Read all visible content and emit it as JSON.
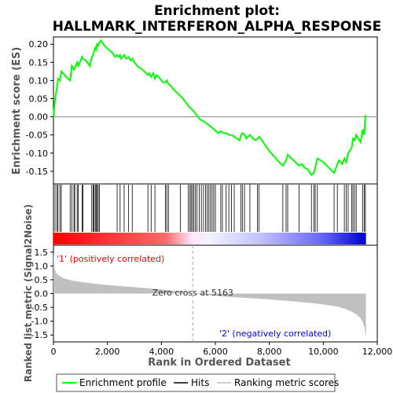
{
  "chart_data": {
    "type": "line",
    "title": "Enrichment plot:\nHALLMARK_INTERFERON_ALPHA_RESPONSE",
    "top_panel": {
      "ylabel": "Enrichment score (ES)",
      "ylim": [
        -0.185,
        0.22
      ],
      "yticks": [
        0.2,
        0.15,
        0.1,
        0.05,
        0.0,
        -0.05,
        -0.1,
        -0.15
      ],
      "ytick_labels": [
        "0.20",
        "0.15",
        "0.10",
        "0.05",
        "0.00",
        "-0.05",
        "-0.10",
        "-0.15"
      ],
      "zero_line": 0.0,
      "series": [
        {
          "name": "Enrichment profile",
          "color": "#00ff00",
          "x": [
            0,
            60,
            130,
            170,
            240,
            290,
            420,
            460,
            620,
            680,
            760,
            790,
            880,
            920,
            1060,
            1090,
            1200,
            1350,
            1420,
            1470,
            1500,
            1550,
            1580,
            1620,
            1660,
            1700,
            1760,
            1900,
            2050,
            2200,
            2290,
            2360,
            2420,
            2470,
            2500,
            2560,
            2620,
            2700,
            2780,
            2860,
            2920,
            3000,
            3100,
            3300,
            3500,
            3550,
            3620,
            3700,
            3760,
            3820,
            3900,
            4050,
            4150,
            4200,
            4260,
            4350,
            4450,
            4600,
            4800,
            5000,
            5200,
            5400,
            5600,
            5800,
            5950,
            6100,
            6200,
            6300,
            6400,
            6500,
            6600,
            6700,
            6800,
            6900,
            6950,
            7000,
            7080,
            7150,
            7200,
            7280,
            7330,
            7400,
            7500,
            7560,
            7620,
            7680,
            8000,
            8300,
            8500,
            8620,
            8680,
            8750,
            8900,
            9100,
            9200,
            9300,
            9420,
            9560,
            9650,
            9700,
            9780,
            10000,
            10400,
            10520,
            10580,
            10700,
            10780,
            10850,
            10920,
            11050,
            11100,
            11160,
            11220,
            11380,
            11460,
            11520,
            11560
          ],
          "values": [
            0.0,
            0.05,
            0.08,
            0.105,
            0.1,
            0.125,
            0.115,
            0.11,
            0.1,
            0.14,
            0.13,
            0.135,
            0.15,
            0.14,
            0.165,
            0.16,
            0.155,
            0.14,
            0.165,
            0.17,
            0.18,
            0.19,
            0.185,
            0.2,
            0.195,
            0.205,
            0.21,
            0.195,
            0.185,
            0.175,
            0.165,
            0.17,
            0.165,
            0.17,
            0.16,
            0.165,
            0.17,
            0.16,
            0.165,
            0.155,
            0.16,
            0.15,
            0.14,
            0.13,
            0.115,
            0.12,
            0.11,
            0.12,
            0.105,
            0.115,
            0.11,
            0.095,
            0.095,
            0.1,
            0.09,
            0.085,
            0.075,
            0.065,
            0.05,
            0.03,
            0.015,
            -0.005,
            -0.015,
            -0.025,
            -0.035,
            -0.045,
            -0.04,
            -0.045,
            -0.045,
            -0.05,
            -0.05,
            -0.055,
            -0.06,
            -0.065,
            -0.05,
            -0.045,
            -0.05,
            -0.06,
            -0.055,
            -0.05,
            -0.055,
            -0.06,
            -0.065,
            -0.06,
            -0.055,
            -0.06,
            -0.095,
            -0.12,
            -0.135,
            -0.12,
            -0.105,
            -0.11,
            -0.12,
            -0.135,
            -0.13,
            -0.14,
            -0.145,
            -0.16,
            -0.155,
            -0.14,
            -0.115,
            -0.125,
            -0.155,
            -0.13,
            -0.12,
            -0.13,
            -0.115,
            -0.125,
            -0.1,
            -0.085,
            -0.06,
            -0.065,
            -0.05,
            -0.07,
            -0.035,
            -0.05,
            0.005
          ]
        }
      ]
    },
    "hits": {
      "name": "Hits",
      "color": "#000000",
      "x": [
        60,
        130,
        170,
        240,
        290,
        620,
        680,
        760,
        790,
        880,
        920,
        1060,
        1090,
        1420,
        1470,
        1500,
        1550,
        1580,
        1620,
        1660,
        1700,
        2360,
        2470,
        2620,
        2780,
        2920,
        3500,
        3620,
        3760,
        4150,
        4200,
        4260,
        4700,
        5000,
        5060,
        5100,
        5150,
        5200,
        5260,
        5320,
        5400,
        5480,
        5560,
        5640,
        5700,
        5760,
        5820,
        5880,
        5940,
        6000,
        6200,
        6260,
        6400,
        6500,
        6600,
        6700,
        6950,
        7000,
        7080,
        7280,
        7560,
        7620,
        8500,
        8620,
        8680,
        9100,
        9560,
        9650,
        9700,
        9780,
        10400,
        10520,
        10780,
        10850,
        10920,
        11050,
        11100,
        11160,
        11220,
        11460,
        11520,
        11560
      ]
    },
    "ranking": {
      "name": "Ranking metric scores",
      "color": "#c0c0c0",
      "ylabel": "Ranked list metric (Signal2Noise)",
      "ylim": [
        -1.75,
        1.75
      ],
      "yticks": [
        1.5,
        1.0,
        0.5,
        0.0,
        -0.5,
        -1.0,
        -1.5
      ],
      "ytick_labels": [
        "1.5",
        "1.0",
        "0.5",
        "0.0",
        "-0.5",
        "-1.0",
        "-1.5"
      ],
      "x": [
        0,
        40,
        100,
        200,
        400,
        700,
        1000,
        1500,
        2000,
        2500,
        3000,
        3500,
        4000,
        4500,
        5000,
        5163,
        5500,
        6000,
        6500,
        7000,
        7500,
        8000,
        8500,
        9000,
        9500,
        10000,
        10500,
        10800,
        11000,
        11200,
        11350,
        11450,
        11520,
        11560,
        11580
      ],
      "values": [
        1.5,
        0.9,
        0.75,
        0.65,
        0.55,
        0.47,
        0.42,
        0.36,
        0.31,
        0.27,
        0.23,
        0.19,
        0.15,
        0.1,
        0.04,
        0.0,
        -0.04,
        -0.08,
        -0.12,
        -0.15,
        -0.18,
        -0.21,
        -0.25,
        -0.29,
        -0.34,
        -0.39,
        -0.47,
        -0.55,
        -0.63,
        -0.74,
        -0.86,
        -1.0,
        -1.2,
        -1.45,
        -1.6
      ]
    },
    "xlabel": "Rank in Ordered Dataset",
    "xlim": [
      0,
      12000
    ],
    "xticks": [
      0,
      2000,
      4000,
      6000,
      8000,
      10000,
      12000
    ],
    "xtick_labels": [
      "0",
      "2,000",
      "4,000",
      "6,000",
      "8,000",
      "10,000",
      "12,000"
    ],
    "n_genes": 11580,
    "zero_cross": 5163,
    "annotations": {
      "positive": "'1' (positively correlated)",
      "negative": "'2' (negatively correlated)",
      "zero_cross": "Zero cross at 5163"
    },
    "legend": {
      "placement": "bottom",
      "entries": [
        "Enrichment profile",
        "Hits",
        "Ranking metric scores"
      ]
    },
    "colors": {
      "profile": "#00ff00",
      "positive_text": "#ff0000",
      "negative_text": "#0000ff",
      "bar_positive": "#ff0000",
      "bar_negative": "#0000ff",
      "axis_label": "#555555"
    }
  }
}
